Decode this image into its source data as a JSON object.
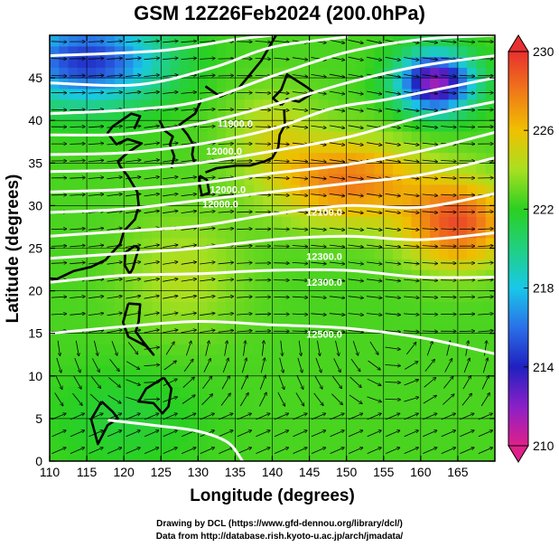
{
  "title": "GSM 12Z26Feb2024 (200.0hPa)",
  "xlabel": "Longitude (degrees)",
  "ylabel": "Latitude  (degrees)",
  "credit_line1": "Drawing by DCL (https://www.gfd-dennou.org/library/dcl/)",
  "credit_line2": "Data from http://database.rish.kyoto-u.ac.jp/arch/jmadata/",
  "chart_data": {
    "type": "heatmap",
    "x_range": [
      110,
      170
    ],
    "y_range": [
      0,
      50
    ],
    "x_ticks": [
      110,
      115,
      120,
      125,
      130,
      135,
      140,
      145,
      150,
      155,
      160,
      165
    ],
    "y_ticks": [
      0,
      5,
      10,
      15,
      20,
      25,
      30,
      35,
      40,
      45
    ],
    "colorbar": {
      "min": 210,
      "max": 230,
      "ticks": [
        210,
        214,
        218,
        222,
        226,
        230
      ],
      "stops": [
        {
          "v": 210,
          "color": "#e0208a"
        },
        {
          "v": 212,
          "color": "#8a20c8"
        },
        {
          "v": 214,
          "color": "#2020c0"
        },
        {
          "v": 216,
          "color": "#2a70e8"
        },
        {
          "v": 218,
          "color": "#18c8e8"
        },
        {
          "v": 220,
          "color": "#20d080"
        },
        {
          "v": 222,
          "color": "#2ad020"
        },
        {
          "v": 224,
          "color": "#a8e020"
        },
        {
          "v": 226,
          "color": "#f0c000"
        },
        {
          "v": 228,
          "color": "#f07818"
        },
        {
          "v": 230,
          "color": "#e83030"
        }
      ]
    },
    "contour_labels": [
      {
        "text": "11900.0",
        "lon": 135,
        "lat": 39.2
      },
      {
        "text": "12000.0",
        "lon": 133.5,
        "lat": 36.0
      },
      {
        "text": "12000.0",
        "lon": 134,
        "lat": 31.5
      },
      {
        "text": "12000.0",
        "lon": 133,
        "lat": 29.8
      },
      {
        "text": "12100.0",
        "lon": 147,
        "lat": 28.8
      },
      {
        "text": "12300.0",
        "lon": 147,
        "lat": 23.6
      },
      {
        "text": "12300.0",
        "lon": 147,
        "lat": 20.6
      },
      {
        "text": "12500.0",
        "lon": 147,
        "lat": 14.5
      }
    ],
    "contours": [
      [
        [
          110,
          47.6
        ],
        [
          125,
          48.2
        ],
        [
          135,
          49.5
        ],
        [
          140,
          50
        ]
      ],
      [
        [
          110,
          44.4
        ],
        [
          122,
          44.2
        ],
        [
          132,
          46.2
        ],
        [
          140,
          48.6
        ],
        [
          150,
          49.8
        ]
      ],
      [
        [
          110,
          40.8
        ],
        [
          120,
          41.2
        ],
        [
          130,
          42.2
        ],
        [
          140,
          45.2
        ],
        [
          150,
          48.0
        ],
        [
          160,
          49.5
        ],
        [
          170,
          50
        ]
      ],
      [
        [
          110,
          38.3
        ],
        [
          120,
          38.4
        ],
        [
          130,
          39.6
        ],
        [
          140,
          41.8
        ],
        [
          150,
          44.4
        ],
        [
          160,
          46.4
        ],
        [
          170,
          47.6
        ]
      ],
      [
        [
          110,
          36.0
        ],
        [
          120,
          36.2
        ],
        [
          130,
          37.2
        ],
        [
          140,
          39.0
        ],
        [
          148,
          41.4
        ],
        [
          155,
          42.4
        ],
        [
          162,
          43.6
        ],
        [
          170,
          45.0
        ]
      ],
      [
        [
          110,
          34.0
        ],
        [
          120,
          34.2
        ],
        [
          130,
          35.0
        ],
        [
          140,
          36.4
        ],
        [
          150,
          38.0
        ],
        [
          160,
          40.4
        ],
        [
          170,
          42.2
        ]
      ],
      [
        [
          110,
          31.6
        ],
        [
          120,
          31.9
        ],
        [
          130,
          32.6
        ],
        [
          140,
          33.8
        ],
        [
          150,
          34.8
        ],
        [
          160,
          36.4
        ],
        [
          170,
          38.6
        ]
      ],
      [
        [
          110,
          29.2
        ],
        [
          120,
          29.6
        ],
        [
          130,
          30.6
        ],
        [
          140,
          31.6
        ],
        [
          150,
          32.6
        ],
        [
          160,
          33.6
        ],
        [
          170,
          35.6
        ]
      ],
      [
        [
          110,
          26.4
        ],
        [
          120,
          27.0
        ],
        [
          130,
          27.6
        ],
        [
          140,
          29.0
        ],
        [
          150,
          30.0
        ],
        [
          160,
          29.8
        ],
        [
          170,
          31.4
        ]
      ],
      [
        [
          110,
          23.8
        ],
        [
          120,
          24.4
        ],
        [
          130,
          25.0
        ],
        [
          140,
          26.0
        ],
        [
          150,
          26.4
        ],
        [
          160,
          26.0
        ],
        [
          170,
          26.8
        ]
      ],
      [
        [
          110,
          21.0
        ],
        [
          120,
          21.8
        ],
        [
          130,
          22.0
        ],
        [
          140,
          22.4
        ],
        [
          150,
          22.4
        ],
        [
          160,
          21.6
        ],
        [
          170,
          21.6
        ]
      ],
      [
        [
          110,
          15.0
        ],
        [
          120,
          15.8
        ],
        [
          130,
          16.4
        ],
        [
          140,
          16.0
        ],
        [
          150,
          15.6
        ],
        [
          160,
          14.5
        ],
        [
          170,
          12.6
        ]
      ],
      [
        [
          118,
          4.8
        ],
        [
          124,
          4.2
        ],
        [
          130,
          3.5
        ],
        [
          134,
          2.2
        ],
        [
          136,
          0
        ]
      ]
    ],
    "coastlines": [
      [
        [
          131,
          33.9
        ],
        [
          132.5,
          34.4
        ],
        [
          135.2,
          34.7
        ],
        [
          137,
          34.7
        ],
        [
          139,
          35.2
        ],
        [
          140,
          35.6
        ],
        [
          140.8,
          36.8
        ],
        [
          141,
          38.3
        ],
        [
          141.7,
          39.5
        ],
        [
          141.6,
          41.3
        ]
      ],
      [
        [
          130.2,
          33.5
        ],
        [
          131.2,
          33.0
        ],
        [
          131.5,
          31.5
        ],
        [
          130.5,
          31.2
        ],
        [
          130.2,
          32.5
        ],
        [
          130.2,
          33.5
        ]
      ],
      [
        [
          141.2,
          41.8
        ],
        [
          142,
          42.5
        ],
        [
          143.6,
          42.2
        ],
        [
          145.6,
          43.3
        ],
        [
          144.5,
          44.0
        ],
        [
          142,
          45.4
        ],
        [
          141.2,
          43.6
        ],
        [
          140.1,
          42.6
        ],
        [
          141.2,
          41.8
        ]
      ],
      [
        [
          126.4,
          34.4
        ],
        [
          126.8,
          35.8
        ],
        [
          126.2,
          37.2
        ],
        [
          126.6,
          38.1
        ],
        [
          125.5,
          38.8
        ],
        [
          124.8,
          40.0
        ]
      ],
      [
        [
          129.5,
          35.0
        ],
        [
          129.2,
          36.0
        ],
        [
          129.4,
          37.1
        ],
        [
          128.6,
          38.3
        ],
        [
          127.5,
          39.5
        ],
        [
          129.6,
          40.8
        ],
        [
          130.5,
          42.5
        ]
      ],
      [
        [
          121.5,
          25.3
        ],
        [
          122,
          25.0
        ],
        [
          121.2,
          22.6
        ],
        [
          120.8,
          22.0
        ],
        [
          120.1,
          23.0
        ],
        [
          120.2,
          24.5
        ],
        [
          121.5,
          25.3
        ]
      ],
      [
        [
          120.6,
          18.5
        ],
        [
          122.2,
          18.4
        ],
        [
          122.0,
          16.4
        ],
        [
          121.6,
          15.2
        ],
        [
          122.6,
          14.0
        ],
        [
          124.0,
          12.5
        ],
        [
          123.0,
          13.5
        ],
        [
          120.6,
          14.6
        ],
        [
          119.9,
          16.3
        ],
        [
          120.6,
          18.5
        ]
      ],
      [
        [
          125.4,
          9.8
        ],
        [
          126.4,
          8.5
        ],
        [
          126.0,
          6.4
        ],
        [
          125.2,
          5.6
        ],
        [
          124.0,
          6.8
        ],
        [
          122.0,
          7.0
        ],
        [
          123.0,
          8.5
        ],
        [
          125.4,
          9.8
        ]
      ],
      [
        [
          117,
          7.0
        ],
        [
          118.5,
          5.8
        ],
        [
          119.2,
          5.0
        ],
        [
          117.8,
          4.2
        ],
        [
          116.5,
          2.0
        ],
        [
          115.6,
          4.9
        ],
        [
          117,
          7.0
        ]
      ],
      [
        [
          108.5,
          21.5
        ],
        [
          111,
          21.4
        ],
        [
          113.2,
          22.3
        ],
        [
          115.6,
          22.8
        ],
        [
          117.5,
          23.6
        ],
        [
          119.5,
          25.5
        ],
        [
          120,
          27
        ],
        [
          121.5,
          28.4
        ],
        [
          122,
          30.0
        ],
        [
          121.8,
          31.6
        ],
        [
          120.5,
          33.5
        ],
        [
          119.5,
          34.6
        ],
        [
          119.2,
          35.2
        ],
        [
          120.5,
          36.2
        ],
        [
          122.4,
          37.3
        ],
        [
          120.5,
          37.8
        ],
        [
          119,
          37.2
        ],
        [
          117.8,
          38.5
        ],
        [
          118.5,
          39.3
        ],
        [
          121,
          40.8
        ],
        [
          122.2,
          40.5
        ],
        [
          121.4,
          39.0
        ]
      ],
      [
        [
          131,
          44.0
        ],
        [
          133,
          42.8
        ],
        [
          135.5,
          43.8
        ],
        [
          138.5,
          47.0
        ],
        [
          140.5,
          50
        ]
      ],
      [
        [
          156.5,
          51
        ],
        [
          156.0,
          52.5
        ]
      ]
    ]
  }
}
